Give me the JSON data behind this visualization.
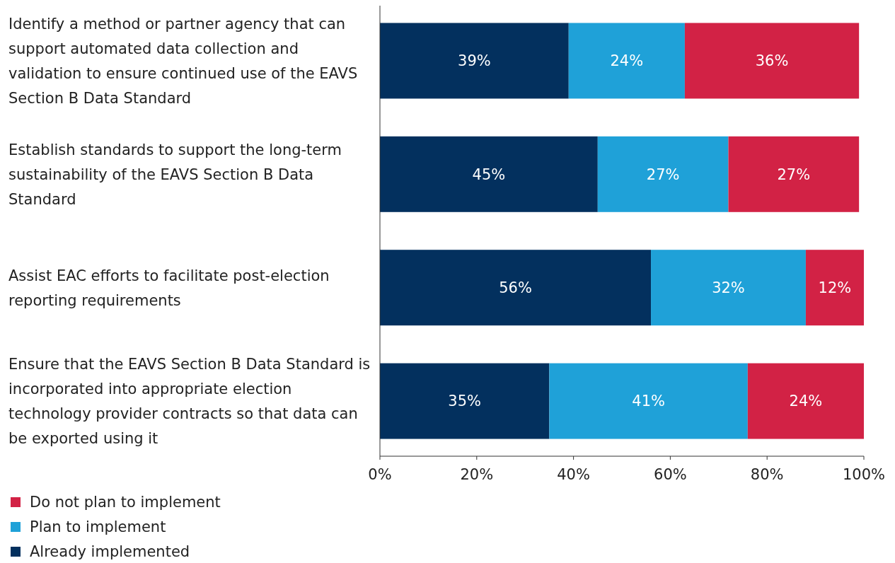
{
  "chart_data": {
    "type": "bar",
    "orientation": "horizontal",
    "stacked": true,
    "categories": [
      "Identify a method or partner agency that can support automated data collection and validation to ensure continued use of the EAVS Section B Data Standard",
      "Establish standards to support the long-term sustainability of the EAVS Section B Data Standard",
      "Assist EAC efforts to facilitate post-election reporting requirements",
      "Ensure that the EAVS Section B Data Standard is incorporated into appropriate election technology provider contracts so that data can be exported using it"
    ],
    "series": [
      {
        "name": "Already implemented",
        "color": "#03305e",
        "values": [
          39,
          45,
          56,
          35
        ],
        "value_labels": [
          "39%",
          "45%",
          "56%",
          "35%"
        ]
      },
      {
        "name": "Plan to implement",
        "color": "#1fa1d8",
        "values": [
          24,
          27,
          32,
          41
        ],
        "value_labels": [
          "24%",
          "27%",
          "32%",
          "41%"
        ]
      },
      {
        "name": "Do not plan to implement",
        "color": "#d22245",
        "values": [
          36,
          27,
          12,
          24
        ],
        "value_labels": [
          "36%",
          "27%",
          "12%",
          "24%"
        ]
      }
    ],
    "xlim": [
      0,
      100
    ],
    "xticks": [
      {
        "value": 0,
        "label": "0%"
      },
      {
        "value": 20,
        "label": "20%"
      },
      {
        "value": 40,
        "label": "40%"
      },
      {
        "value": 60,
        "label": "60%"
      },
      {
        "value": 80,
        "label": "80%"
      },
      {
        "value": 100,
        "label": "100%"
      }
    ],
    "legend": "bottom left",
    "grid": false
  }
}
